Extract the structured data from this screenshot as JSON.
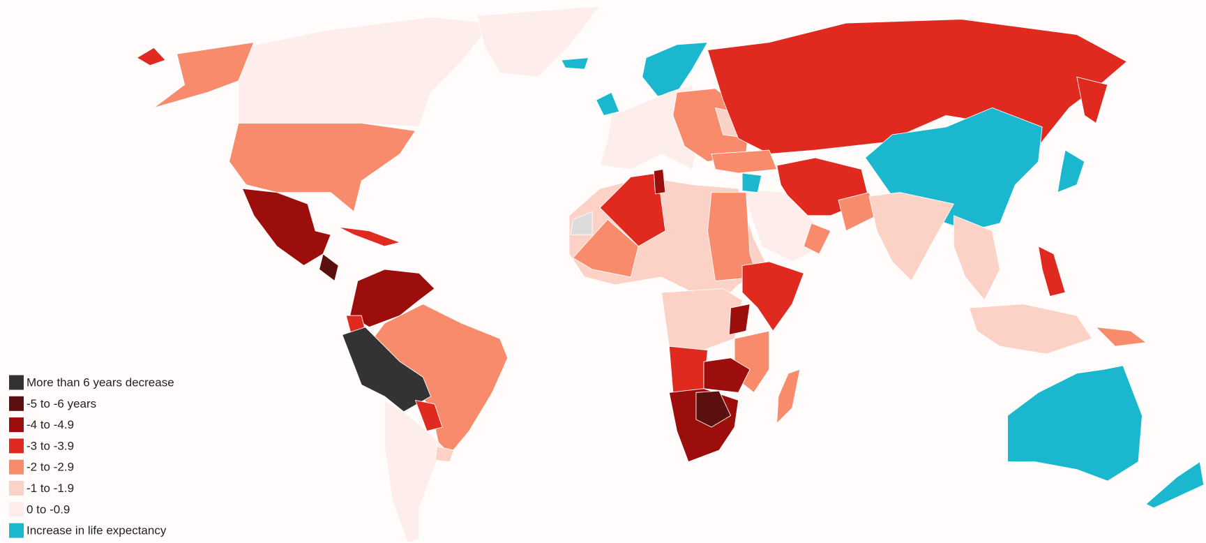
{
  "legend": {
    "items": [
      {
        "label": "More than 6 years decrease",
        "color": "#333333"
      },
      {
        "label": "-5 to -6 years",
        "color": "#5c0f0f"
      },
      {
        "label": "-4 to -4.9",
        "color": "#9c0e0b"
      },
      {
        "label": "-3 to -3.9",
        "color": "#e0291f"
      },
      {
        "label": "-2 to -2.9",
        "color": "#f78b6b"
      },
      {
        "label": "-1 to -1.9",
        "color": "#fdd2c6"
      },
      {
        "label": "0 to -0.9",
        "color": "#fdeeec"
      },
      {
        "label": "Increase in life expectancy",
        "color": "#1bb7cf"
      }
    ]
  }
}
